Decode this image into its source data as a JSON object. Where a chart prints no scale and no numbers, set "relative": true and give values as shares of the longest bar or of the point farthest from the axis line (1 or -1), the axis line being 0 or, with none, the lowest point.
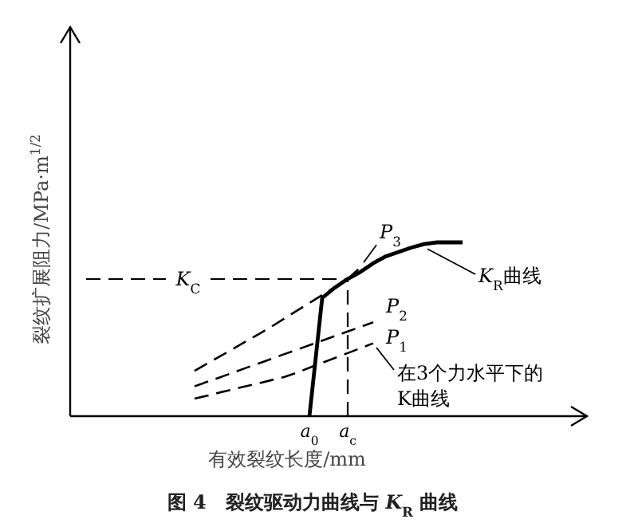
{
  "chart_data": {
    "type": "line",
    "relative": true,
    "title": "图 4　裂纹驱动力曲线与 *K*$_{R}$ 曲线",
    "xlabel": "有效裂纹长度/mm",
    "ylabel": "裂纹扩展阻力/MPa·m$^{1/2}$",
    "categories": [
      null,
      null,
      null,
      null,
      null,
      null,
      null,
      null,
      null,
      null,
      null,
      null,
      null,
      null,
      null,
      null,
      null,
      null,
      "*a*$_{0}$",
      null,
      null,
      "*a*$_{c}$",
      null,
      null,
      null,
      null,
      null,
      null,
      null,
      null,
      null,
      null,
      null,
      null,
      null,
      null,
      null,
      null,
      null,
      null
    ],
    "series": [
      {
        "name": "*K*$_{R}$曲线",
        "color": "#000000",
        "line_style": "solid",
        "values": [
          null,
          null,
          null,
          null,
          null,
          null,
          null,
          null,
          null,
          null,
          null,
          null,
          null,
          null,
          null,
          null,
          null,
          null,
          0,
          0.68,
          0.74,
          0.79,
          0.83,
          0.88,
          0.92,
          0.945,
          0.97,
          0.99,
          1.0,
          1.0,
          1.0,
          null,
          null,
          null,
          null,
          null,
          null,
          null,
          null,
          null
        ]
      },
      {
        "name": "*P*$_{3}$",
        "color": "#000000",
        "line_style": "dashed",
        "values": [
          null,
          null,
          null,
          null,
          null,
          null,
          null,
          null,
          null,
          0.261,
          0.303,
          0.345,
          0.387,
          0.429,
          0.471,
          0.514,
          0.56,
          0.606,
          0.651,
          0.697,
          0.743,
          0.789,
          0.857,
          null,
          null,
          null,
          null,
          null,
          null,
          null,
          null,
          null,
          null,
          null,
          null,
          null,
          null,
          null,
          null,
          null
        ]
      },
      {
        "name": "*P*$_{2}$",
        "color": "#000000",
        "line_style": "dashed",
        "values": [
          null,
          null,
          null,
          null,
          null,
          null,
          null,
          null,
          null,
          0.172,
          0.198,
          0.224,
          0.25,
          0.277,
          0.303,
          0.329,
          0.356,
          0.382,
          0.408,
          0.435,
          0.461,
          0.487,
          0.514,
          0.54,
          null,
          null,
          null,
          null,
          null,
          null,
          null,
          null,
          null,
          null,
          null,
          null,
          null,
          null,
          null,
          null
        ]
      },
      {
        "name": "*P*$_{1}$",
        "color": "#000000",
        "line_style": "dashed",
        "values": [
          null,
          null,
          null,
          null,
          null,
          null,
          null,
          null,
          null,
          0.101,
          0.118,
          0.137,
          0.154,
          0.172,
          0.189,
          0.207,
          0.225,
          0.25,
          0.279,
          0.307,
          0.335,
          0.363,
          0.391,
          0.419,
          null,
          null,
          null,
          null,
          null,
          null,
          null,
          null,
          null,
          null,
          null,
          null,
          null,
          null,
          null,
          null
        ]
      }
    ],
    "ref_lines": [
      {
        "axis": "y",
        "value": 0.789,
        "label": "*K*$_{C}$",
        "line_style": "dashed",
        "color": "#000000"
      },
      {
        "axis": "x",
        "value": "*a*$_{c}$",
        "line_style": "dashed",
        "color": "#000000"
      }
    ],
    "annotations": [
      "在3个力水平下的K曲线"
    ]
  }
}
